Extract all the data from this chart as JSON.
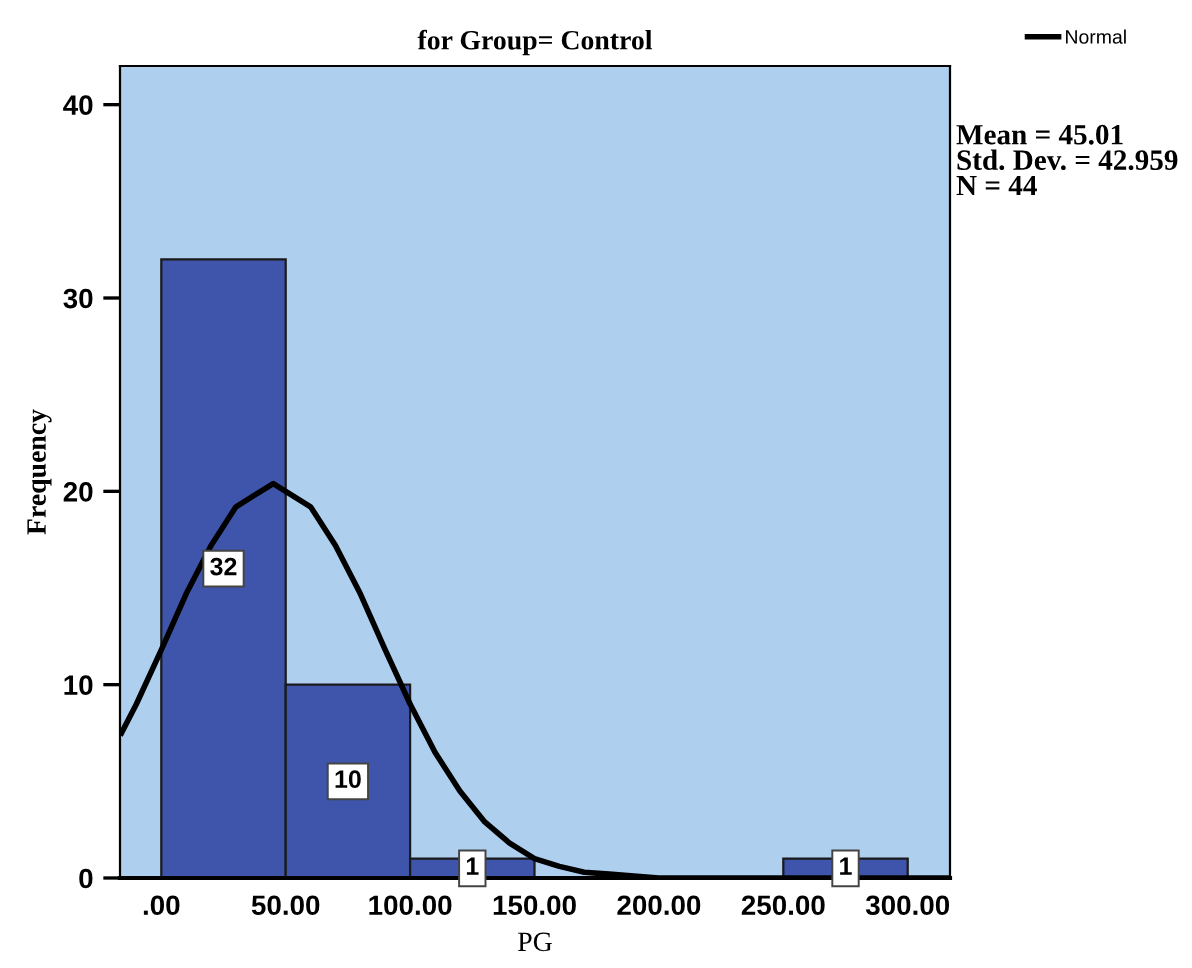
{
  "chart_data": {
    "type": "histogram",
    "title": "for Group= Control",
    "xlabel": "PG",
    "ylabel": "Frequency",
    "bins": [
      0,
      50,
      100,
      150,
      200,
      250,
      300
    ],
    "values": [
      32,
      10,
      1,
      0,
      0,
      1
    ],
    "value_labels": [
      "32",
      "10",
      "1",
      null,
      null,
      "1"
    ],
    "color": "#3e55ab",
    "series": [
      {
        "name": "Normal",
        "type": "line",
        "color": "#000000",
        "x": [
          -16,
          -10,
          0,
          10,
          20,
          30,
          45,
          60,
          70,
          80,
          90,
          100,
          110,
          120,
          130,
          140,
          150,
          160,
          170,
          180,
          200,
          250,
          317
        ],
        "values": [
          7.5,
          9.0,
          11.8,
          14.7,
          17.2,
          19.2,
          20.4,
          19.2,
          17.2,
          14.7,
          11.8,
          9.0,
          6.5,
          4.5,
          2.9,
          1.8,
          1.0,
          0.6,
          0.3,
          0.2,
          0,
          0,
          0
        ]
      }
    ],
    "annotations": [
      "Mean = 45.01\nStd. Dev. = 42.959\nN = 44"
    ],
    "xlim": [
      -16.6,
      317
    ],
    "ylim": [
      0,
      42
    ],
    "xticks": [
      {
        "value": 0,
        "label": ".00"
      },
      {
        "value": 50,
        "label": "50.00"
      },
      {
        "value": 100,
        "label": "100.00"
      },
      {
        "value": 150,
        "label": "150.00"
      },
      {
        "value": 200,
        "label": "200.00"
      },
      {
        "value": 250,
        "label": "250.00"
      },
      {
        "value": 300,
        "label": "300.00"
      }
    ],
    "yticks": [
      0,
      10,
      20,
      30,
      40
    ],
    "grid": false,
    "legend": "top right"
  }
}
